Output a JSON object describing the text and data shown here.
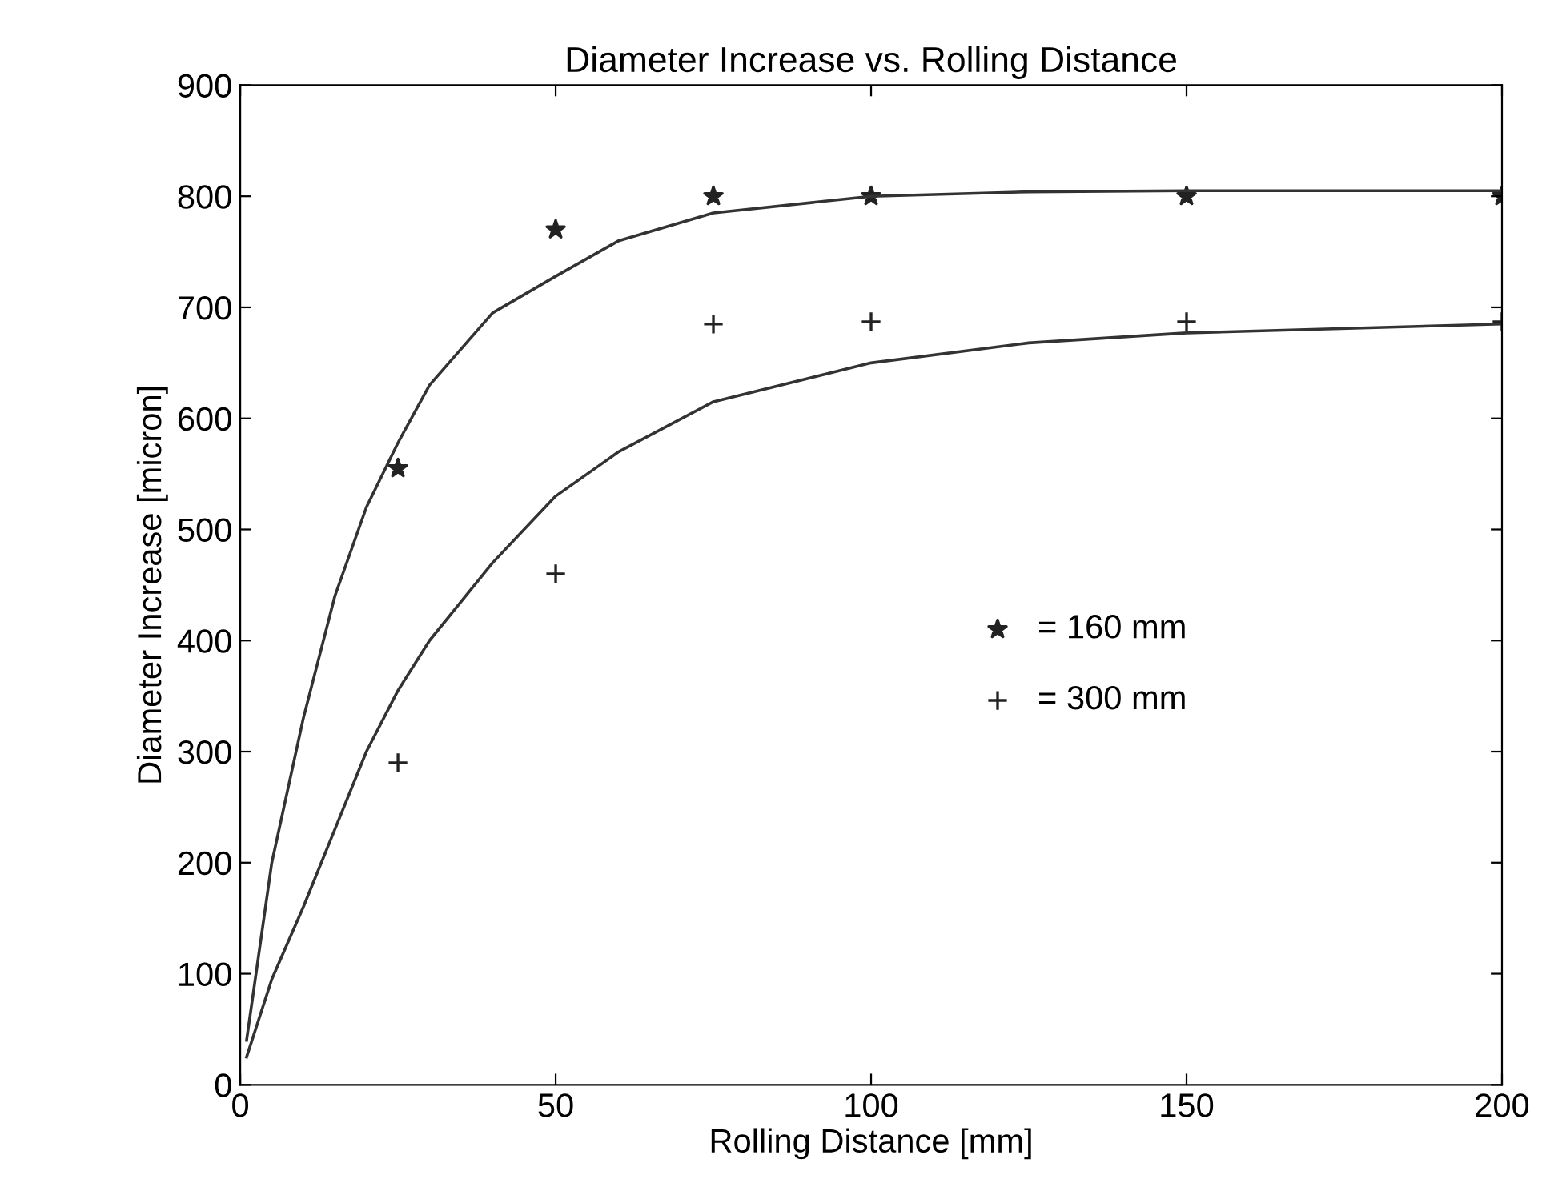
{
  "chart_data": {
    "type": "scatter",
    "title": "Diameter Increase vs. Rolling Distance",
    "xlabel": "Rolling Distance [mm]",
    "ylabel": "Diameter Increase [micron]",
    "xlim": [
      0,
      200
    ],
    "ylim": [
      0,
      900
    ],
    "xticks": [
      0,
      50,
      100,
      150,
      200
    ],
    "yticks": [
      0,
      100,
      200,
      300,
      400,
      500,
      600,
      700,
      800,
      900
    ],
    "grid": false,
    "legend": "right",
    "series": [
      {
        "name": "= 160 mm",
        "marker": "star",
        "color": "#222222",
        "x": [
          25,
          50,
          75,
          100,
          150,
          200
        ],
        "values": [
          555,
          770,
          800,
          800,
          800,
          800
        ]
      },
      {
        "name": "= 300 mm",
        "marker": "cross",
        "color": "#222222",
        "x": [
          25,
          50,
          75,
          100,
          150,
          200
        ],
        "values": [
          290,
          460,
          685,
          687,
          687,
          687
        ]
      },
      {
        "type": "line",
        "marker": "none",
        "color": "#333333",
        "x": [
          1,
          5,
          10,
          15,
          20,
          25,
          30,
          40,
          50,
          60,
          75,
          100,
          125,
          150,
          200
        ],
        "values": [
          40,
          200,
          330,
          440,
          520,
          578,
          630,
          695,
          728,
          760,
          785,
          800,
          804,
          805,
          805
        ]
      },
      {
        "type": "line",
        "marker": "none",
        "color": "#333333",
        "x": [
          1,
          5,
          10,
          15,
          20,
          25,
          30,
          40,
          50,
          60,
          75,
          100,
          125,
          150,
          200
        ],
        "values": [
          25,
          95,
          160,
          230,
          300,
          355,
          400,
          470,
          530,
          570,
          615,
          650,
          668,
          677,
          685
        ]
      }
    ]
  }
}
